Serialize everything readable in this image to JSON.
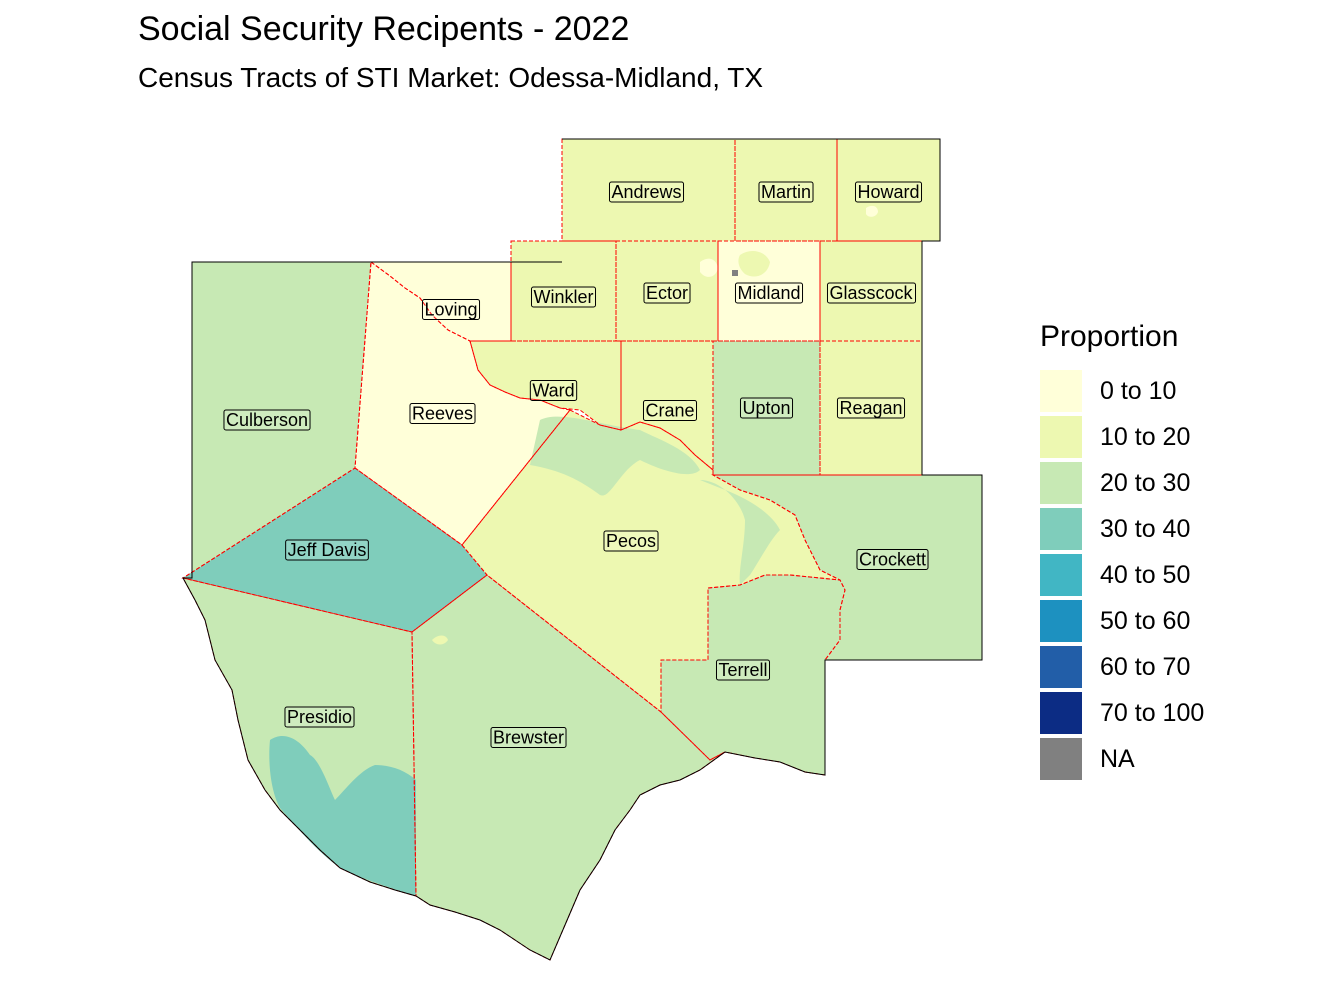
{
  "title": "Social Security Recipents - 2022",
  "subtitle": "Census Tracts of STI Market: Odessa-Midland, TX",
  "legend": {
    "title": "Proportion",
    "items": [
      {
        "label": "0 to 10",
        "color": "#ffffd9"
      },
      {
        "label": "10 to 20",
        "color": "#edf8b1"
      },
      {
        "label": "20 to 30",
        "color": "#c7e9b4"
      },
      {
        "label": "30 to 40",
        "color": "#7fcdbb"
      },
      {
        "label": "40 to 50",
        "color": "#41b6c4"
      },
      {
        "label": "50 to 60",
        "color": "#1d91c0"
      },
      {
        "label": "60 to 70",
        "color": "#225ea8"
      },
      {
        "label": "70 to 100",
        "color": "#0c2c84"
      },
      {
        "label": "NA",
        "color": "#808080"
      }
    ]
  },
  "counties": [
    {
      "name": "Andrews",
      "class": "10 to 20"
    },
    {
      "name": "Martin",
      "class": "10 to 20"
    },
    {
      "name": "Howard",
      "class": "10 to 20"
    },
    {
      "name": "Loving",
      "class": "0 to 10"
    },
    {
      "name": "Winkler",
      "class": "10 to 20"
    },
    {
      "name": "Ector",
      "class": "10 to 20"
    },
    {
      "name": "Midland",
      "class": "0 to 10"
    },
    {
      "name": "Glasscock",
      "class": "10 to 20"
    },
    {
      "name": "Culberson",
      "class": "20 to 30"
    },
    {
      "name": "Ward",
      "class": "10 to 20"
    },
    {
      "name": "Reeves",
      "class": "0 to 10"
    },
    {
      "name": "Crane",
      "class": "10 to 20"
    },
    {
      "name": "Upton",
      "class": "20 to 30"
    },
    {
      "name": "Reagan",
      "class": "10 to 20"
    },
    {
      "name": "Pecos",
      "class": "10 to 20"
    },
    {
      "name": "Crockett",
      "class": "20 to 30"
    },
    {
      "name": "Jeff Davis",
      "class": "30 to 40"
    },
    {
      "name": "Terrell",
      "class": "20 to 30"
    },
    {
      "name": "Presidio",
      "class": "20 to 30"
    },
    {
      "name": "Brewster",
      "class": "20 to 30"
    }
  ],
  "colors": {
    "county_border": "#ff0000",
    "outline": "#000000"
  }
}
